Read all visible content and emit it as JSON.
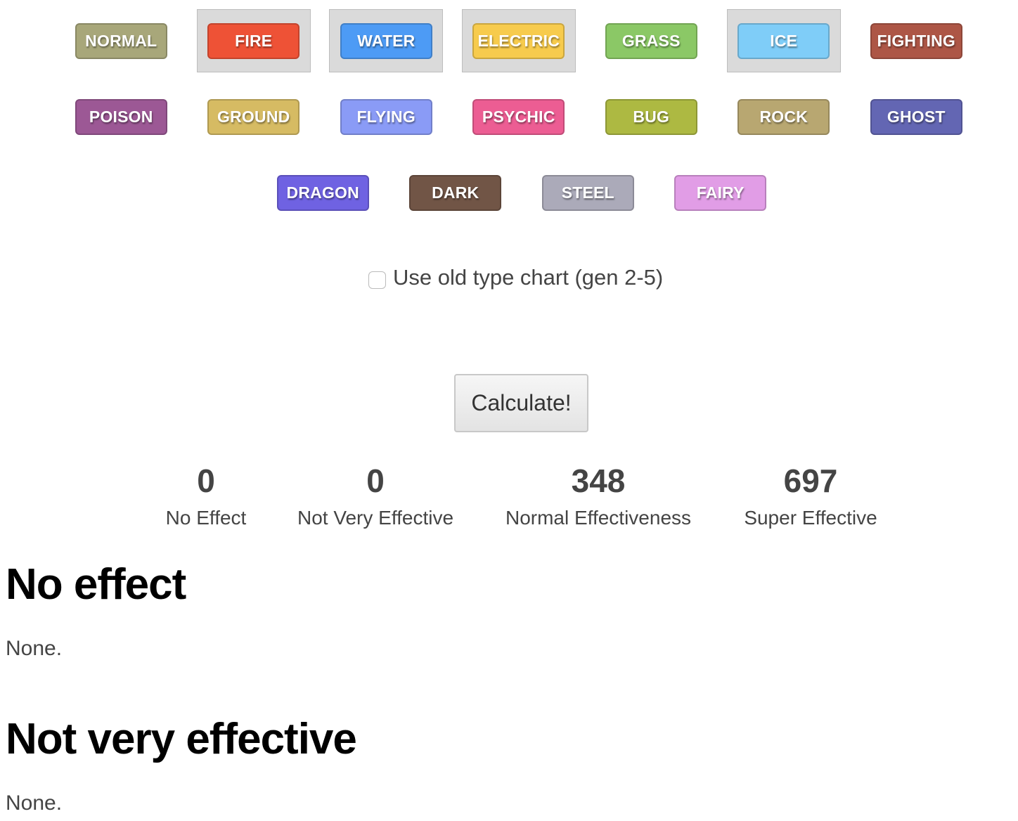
{
  "types": [
    {
      "label": "NORMAL",
      "color": "#a8a77a",
      "selected": false
    },
    {
      "label": "FIRE",
      "color": "#ee5236",
      "selected": true
    },
    {
      "label": "WATER",
      "color": "#4d9bf5",
      "selected": true
    },
    {
      "label": "ELECTRIC",
      "color": "#f7cb4d",
      "selected": true
    },
    {
      "label": "GRASS",
      "color": "#8bc866",
      "selected": false
    },
    {
      "label": "ICE",
      "color": "#7fcdf8",
      "selected": true
    },
    {
      "label": "FIGHTING",
      "color": "#ad5646",
      "selected": false
    },
    {
      "label": "POISON",
      "color": "#9c5895",
      "selected": false
    },
    {
      "label": "GROUND",
      "color": "#d6bb63",
      "selected": false
    },
    {
      "label": "FLYING",
      "color": "#8a9bf6",
      "selected": false
    },
    {
      "label": "PSYCHIC",
      "color": "#ec5d93",
      "selected": false
    },
    {
      "label": "BUG",
      "color": "#adb942",
      "selected": false
    },
    {
      "label": "ROCK",
      "color": "#b8a771",
      "selected": false
    },
    {
      "label": "GHOST",
      "color": "#6366b3",
      "selected": false
    },
    {
      "label": "DRAGON",
      "color": "#6f62e2",
      "selected": false
    },
    {
      "label": "DARK",
      "color": "#715546",
      "selected": false
    },
    {
      "label": "STEEL",
      "color": "#abaab9",
      "selected": false
    },
    {
      "label": "FAIRY",
      "color": "#e19de6",
      "selected": false
    }
  ],
  "old_chart": {
    "label": "Use old type chart (gen 2-5)",
    "checked": false
  },
  "calculate_label": "Calculate!",
  "stats": [
    {
      "value": "0",
      "label": "No Effect"
    },
    {
      "value": "0",
      "label": "Not Very Effective"
    },
    {
      "value": "348",
      "label": "Normal Effectiveness"
    },
    {
      "value": "697",
      "label": "Super Effective"
    }
  ],
  "sections": [
    {
      "title": "No effect",
      "body": "None."
    },
    {
      "title": "Not very effective",
      "body": "None."
    }
  ]
}
